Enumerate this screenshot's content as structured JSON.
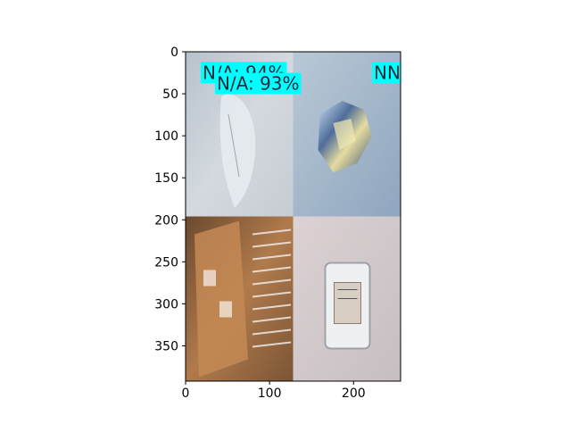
{
  "chart_data": {
    "type": "image",
    "title": "",
    "xlabel": "",
    "ylabel": "",
    "xlim": [
      0,
      256
    ],
    "ylim": [
      392,
      0
    ],
    "x_ticks": [
      0,
      100,
      200
    ],
    "y_ticks": [
      0,
      50,
      100,
      150,
      200,
      250,
      300,
      350
    ],
    "grid": false,
    "colors": {
      "label_box": "#00ffff",
      "label_text": "#1a2a3a"
    },
    "panels": [
      {
        "name": "plastic-bag",
        "description_icon": "plastic-bag-photo",
        "row": 0,
        "col": 0,
        "extent": [
          0,
          128,
          0,
          196
        ]
      },
      {
        "name": "foil",
        "description_icon": "crumpled-foil-photo",
        "row": 0,
        "col": 1,
        "extent": [
          128,
          256,
          0,
          196
        ]
      },
      {
        "name": "cardboard",
        "description_icon": "cardboard-box-photo",
        "row": 1,
        "col": 0,
        "extent": [
          0,
          128,
          196,
          392
        ]
      },
      {
        "name": "container",
        "description_icon": "plastic-container-photo",
        "row": 1,
        "col": 1,
        "extent": [
          128,
          256,
          196,
          392
        ]
      }
    ],
    "annotations": [
      {
        "text": "N/A: 94%",
        "x": 18,
        "y": 12,
        "partially_hidden": true
      },
      {
        "text": "N/A: 93%",
        "x": 35,
        "y": 25
      },
      {
        "text": "NN",
        "x": 222,
        "y": 12,
        "clipped": true
      }
    ]
  }
}
